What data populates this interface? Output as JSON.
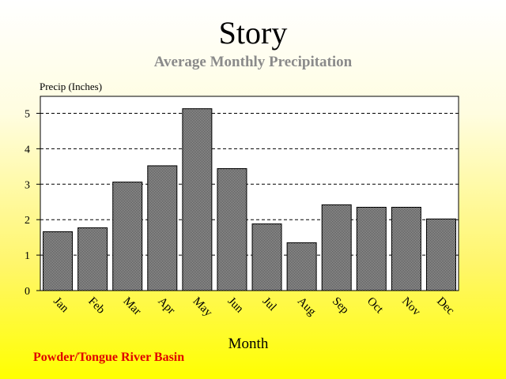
{
  "title": "Story",
  "subtitle": "Average Monthly Precipitation",
  "footnote": "Powder/Tongue River Basin",
  "colors": {
    "bar_fill": "#808080",
    "bar_stroke": "#000000",
    "footnote": "#e00000",
    "subtitle": "#8a8a8a"
  },
  "chart_data": {
    "type": "bar",
    "title": "Story",
    "subtitle": "Average Monthly Precipitation",
    "xlabel": "Month",
    "ylabel": "Precip (Inches)",
    "ylim": [
      0,
      5.5
    ],
    "yticks": [
      0,
      1,
      2,
      3,
      4,
      5
    ],
    "grid": "horizontal-dashed",
    "categories": [
      "Jan",
      "Feb",
      "Mar",
      "Apr",
      "May",
      "Jun",
      "Jul",
      "Aug",
      "Sep",
      "Oct",
      "Nov",
      "Dec"
    ],
    "values": [
      1.66,
      1.77,
      3.06,
      3.52,
      5.13,
      3.44,
      1.88,
      1.35,
      2.42,
      2.35,
      2.35,
      2.02
    ]
  }
}
